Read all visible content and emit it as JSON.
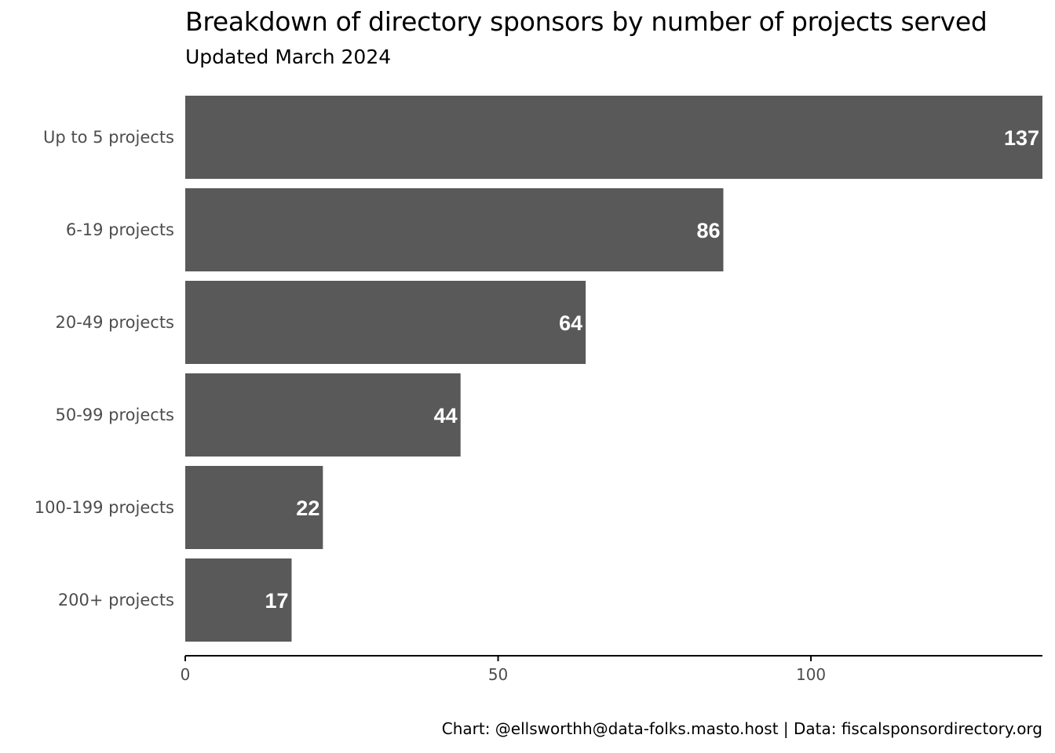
{
  "chart_data": {
    "type": "bar",
    "orientation": "horizontal",
    "title": "Breakdown of directory sponsors by number of projects served",
    "subtitle": "Updated March 2024",
    "caption": "Chart: @ellsworthh@data-folks.masto.host | Data: fiscalsponsordirectory.org",
    "categories": [
      "Up to 5 projects",
      "6-19 projects",
      "20-49 projects",
      "50-99 projects",
      "100-199 projects",
      "200+ projects"
    ],
    "values": [
      137,
      86,
      64,
      44,
      22,
      17
    ],
    "data_labels": [
      "137",
      "86",
      "64",
      "44",
      "22",
      "17"
    ],
    "xlabel": "",
    "ylabel": "",
    "xlim": [
      0,
      137
    ],
    "x_ticks": [
      0,
      50,
      100
    ],
    "x_tick_labels": [
      "0",
      "50",
      "100"
    ],
    "grid": false,
    "legend": "none",
    "bar_color": "#595959",
    "label_color": "#ffffff"
  }
}
